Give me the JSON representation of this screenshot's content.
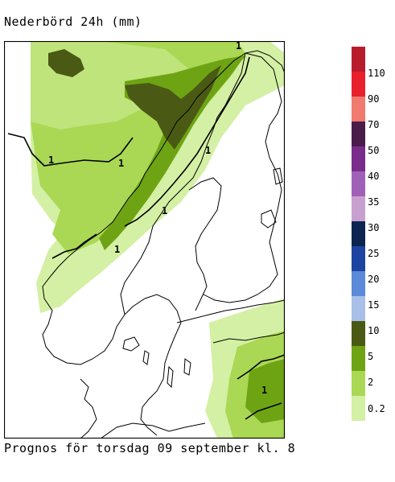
{
  "title": "Nederbörd 24h (mm)",
  "footer": "Prognos för torsdag 09 september kl. 8",
  "contour_label": "1",
  "legend": {
    "items": [
      {
        "label": "",
        "color": "#b81c2c"
      },
      {
        "label": "110",
        "color": "#e8202c"
      },
      {
        "label": "90",
        "color": "#f07a70"
      },
      {
        "label": "70",
        "color": "#4a1c4a"
      },
      {
        "label": "50",
        "color": "#7a2c8c"
      },
      {
        "label": "40",
        "color": "#a060b8"
      },
      {
        "label": "35",
        "color": "#c8a0d0"
      },
      {
        "label": "30",
        "color": "#0c2450"
      },
      {
        "label": "25",
        "color": "#1c44a0"
      },
      {
        "label": "20",
        "color": "#5a8ad8"
      },
      {
        "label": "15",
        "color": "#a8c0e8"
      },
      {
        "label": "10",
        "color": "#4a5a14"
      },
      {
        "label": "5",
        "color": "#6ea414"
      },
      {
        "label": "2",
        "color": "#aad854"
      },
      {
        "label": "0.2",
        "color": "#d4f0a4"
      }
    ],
    "bottom_label": "0.2"
  }
}
